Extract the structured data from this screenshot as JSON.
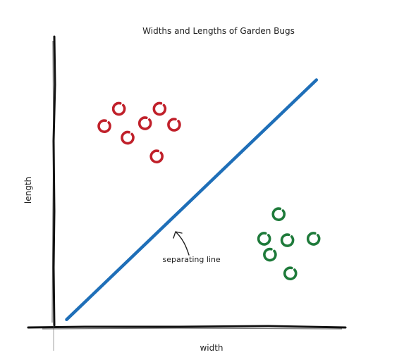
{
  "chart_data": {
    "type": "scatter",
    "title": "Widths and Lengths of Garden Bugs",
    "xlabel": "width",
    "ylabel": "length",
    "xlim": [
      0,
      10
    ],
    "ylim": [
      0,
      10
    ],
    "grid": false,
    "series": [
      {
        "color": "#c0202a",
        "points": [
          {
            "x": 2.2,
            "y": 7.5
          },
          {
            "x": 3.6,
            "y": 7.5
          },
          {
            "x": 1.7,
            "y": 6.9
          },
          {
            "x": 3.1,
            "y": 7.0
          },
          {
            "x": 4.1,
            "y": 6.95
          },
          {
            "x": 2.5,
            "y": 6.5
          },
          {
            "x": 3.5,
            "y": 5.85
          }
        ]
      },
      {
        "color": "#1e7a3a",
        "points": [
          {
            "x": 7.7,
            "y": 3.85
          },
          {
            "x": 7.2,
            "y": 3.0
          },
          {
            "x": 8.0,
            "y": 2.95
          },
          {
            "x": 8.9,
            "y": 3.0
          },
          {
            "x": 7.4,
            "y": 2.45
          },
          {
            "x": 8.1,
            "y": 1.8
          }
        ]
      }
    ],
    "line": {
      "color": "#1f6fb8",
      "x": [
        0.4,
        9.0
      ],
      "y": [
        0.2,
        8.5
      ]
    },
    "annotations": [
      {
        "text": "separating line",
        "x": 4.7,
        "y": 2.2
      }
    ]
  }
}
